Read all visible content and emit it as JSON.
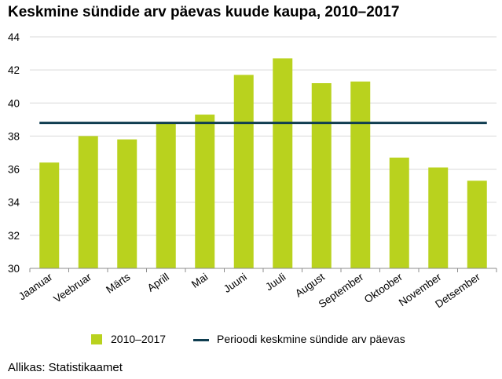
{
  "title": "Keskmine sündide arv päevas kuude kaupa, 2010–2017",
  "source": "Allikas: Statistikaamet",
  "colors": {
    "bar": "#b9d21e",
    "line": "#0f3d50",
    "grid": "#d9d9d9",
    "axis": "#8c8c8c"
  },
  "chart_data": {
    "type": "bar",
    "categories": [
      "Jaanuar",
      "Veebruar",
      "Märts",
      "Aprill",
      "Mai",
      "Juuni",
      "Juuli",
      "August",
      "September",
      "Oktoober",
      "November",
      "Detsember"
    ],
    "series": [
      {
        "name": "2010–2017",
        "type": "bar",
        "values": [
          36.4,
          38.0,
          37.8,
          38.8,
          39.3,
          41.7,
          42.7,
          41.2,
          41.3,
          36.7,
          36.1,
          35.3
        ]
      },
      {
        "name": "Perioodi keskmine sündide arv päevas",
        "type": "line",
        "value": 38.8
      }
    ],
    "ylim": [
      30,
      44
    ],
    "yticks": [
      30,
      32,
      34,
      36,
      38,
      40,
      42,
      44
    ],
    "grid": true,
    "legend": "bottom",
    "xlabel": "",
    "ylabel": ""
  }
}
